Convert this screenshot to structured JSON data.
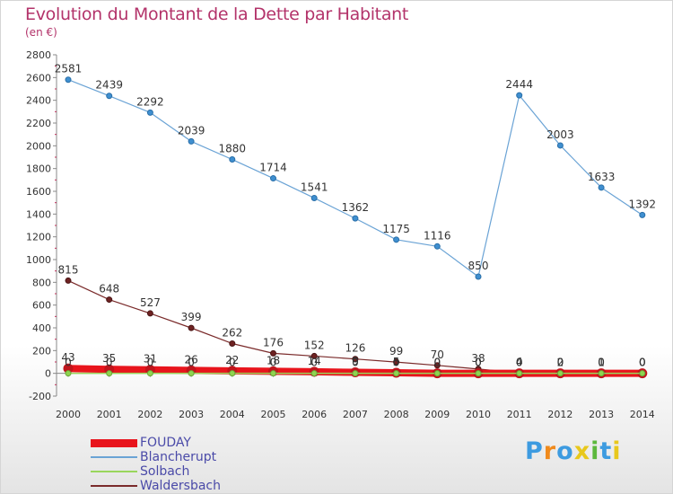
{
  "title": "Evolution du Montant de la Dette par Habitant",
  "subtitle": "(en €)",
  "logo": {
    "text": "Proxiti",
    "colors": [
      "#3d9be0",
      "#f08a1c",
      "#3d9be0",
      "#e8c81c",
      "#5cb83c",
      "#3d9be0",
      "#e8c81c"
    ]
  },
  "chart_data": {
    "type": "line",
    "x": [
      2000,
      2001,
      2002,
      2003,
      2004,
      2005,
      2006,
      2007,
      2008,
      2009,
      2010,
      2011,
      2012,
      2013,
      2014
    ],
    "ylim": [
      -200,
      2800
    ],
    "yticks": [
      -200,
      0,
      200,
      400,
      600,
      800,
      1000,
      1200,
      1400,
      1600,
      1800,
      2000,
      2200,
      2400,
      2600,
      2800
    ],
    "grid": false,
    "legend_position": "bottom-left",
    "series": [
      {
        "name": "FOUDAY",
        "color": "#e8141c",
        "values": [
          43,
          35,
          31,
          26,
          22,
          18,
          14,
          9,
          5,
          0,
          0,
          0,
          0,
          0,
          0
        ]
      },
      {
        "name": "Blancherupt",
        "color": "#6aa3d5",
        "values": [
          2581,
          2439,
          2292,
          2039,
          1880,
          1714,
          1541,
          1362,
          1175,
          1116,
          850,
          2444,
          2003,
          1633,
          1392
        ]
      },
      {
        "name": "Solbach",
        "color": "#99d65c",
        "values": [
          0,
          0,
          0,
          0,
          0,
          0,
          0,
          0,
          0,
          0,
          0,
          0,
          0,
          0,
          0
        ]
      },
      {
        "name": "Waldersbach",
        "color": "#7a2a2a",
        "values": [
          815,
          648,
          527,
          399,
          262,
          176,
          152,
          126,
          99,
          70,
          38,
          4,
          2,
          1,
          0
        ]
      }
    ]
  }
}
